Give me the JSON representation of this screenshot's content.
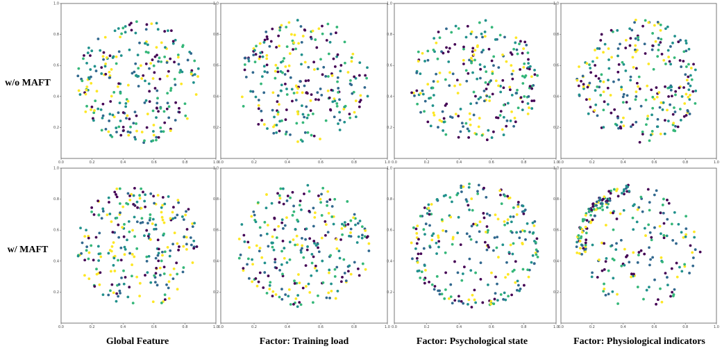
{
  "figure": {
    "row_labels": [
      "w/o MAFT",
      "w/ MAFT"
    ],
    "col_labels": [
      "Global Feature",
      "Factor: Training load",
      "Factor: Psychological state",
      "Factor: Physiological indicators"
    ]
  },
  "chart_data": {
    "type": "scatter",
    "grid": false,
    "xlim": [
      0.0,
      1.0
    ],
    "ylim": [
      0.0,
      1.0
    ],
    "x_ticks": [
      "0.0",
      "0.2",
      "0.4",
      "0.6",
      "0.8",
      "1.0"
    ],
    "y_ticks": [
      "0.2",
      "0.4",
      "0.6",
      "0.8",
      "1.0"
    ],
    "colormap": [
      "#440154",
      "#31688e",
      "#21918c",
      "#35b779",
      "#fde725"
    ],
    "points_per_panel": 260,
    "distribution": "points scattered within a circle of radius ~0.4 centered at (0.5, 0.5)"
  }
}
